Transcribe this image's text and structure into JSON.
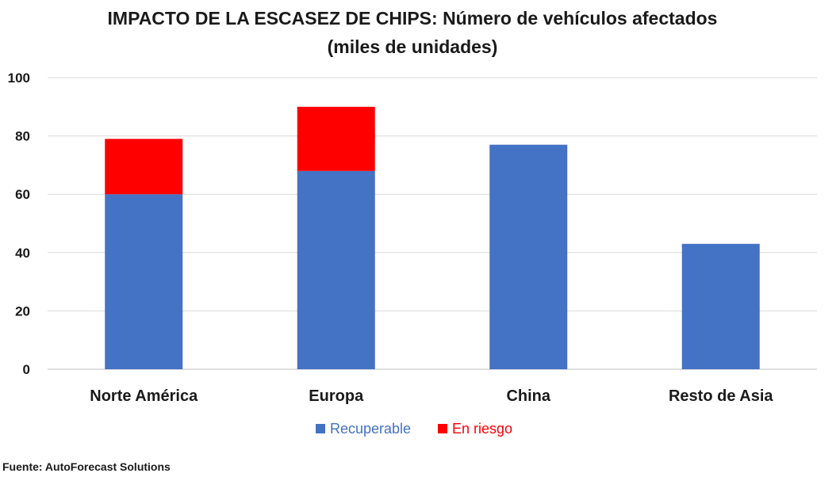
{
  "chart_data": {
    "type": "bar",
    "stacked": true,
    "title": "IMPACTO DE LA ESCASEZ DE CHIPS:  Número de vehículos afectados",
    "subtitle": "(miles de unidades)",
    "categories": [
      "Norte América",
      "Europa",
      "China",
      "Resto de Asia"
    ],
    "series": [
      {
        "name": "Recuperable",
        "color": "#4472C4",
        "values": [
          60,
          68,
          77,
          43
        ]
      },
      {
        "name": "En riesgo",
        "color": "#FF0000",
        "values": [
          19,
          22,
          0,
          0
        ]
      }
    ],
    "ylim": [
      0,
      100
    ],
    "yticks": [
      "0",
      "20",
      "40",
      "60",
      "80",
      "100"
    ],
    "xlabel": "",
    "ylabel": "",
    "grid": true,
    "legend": "bottom"
  },
  "source": "Fuente: AutoForecast Solutions"
}
